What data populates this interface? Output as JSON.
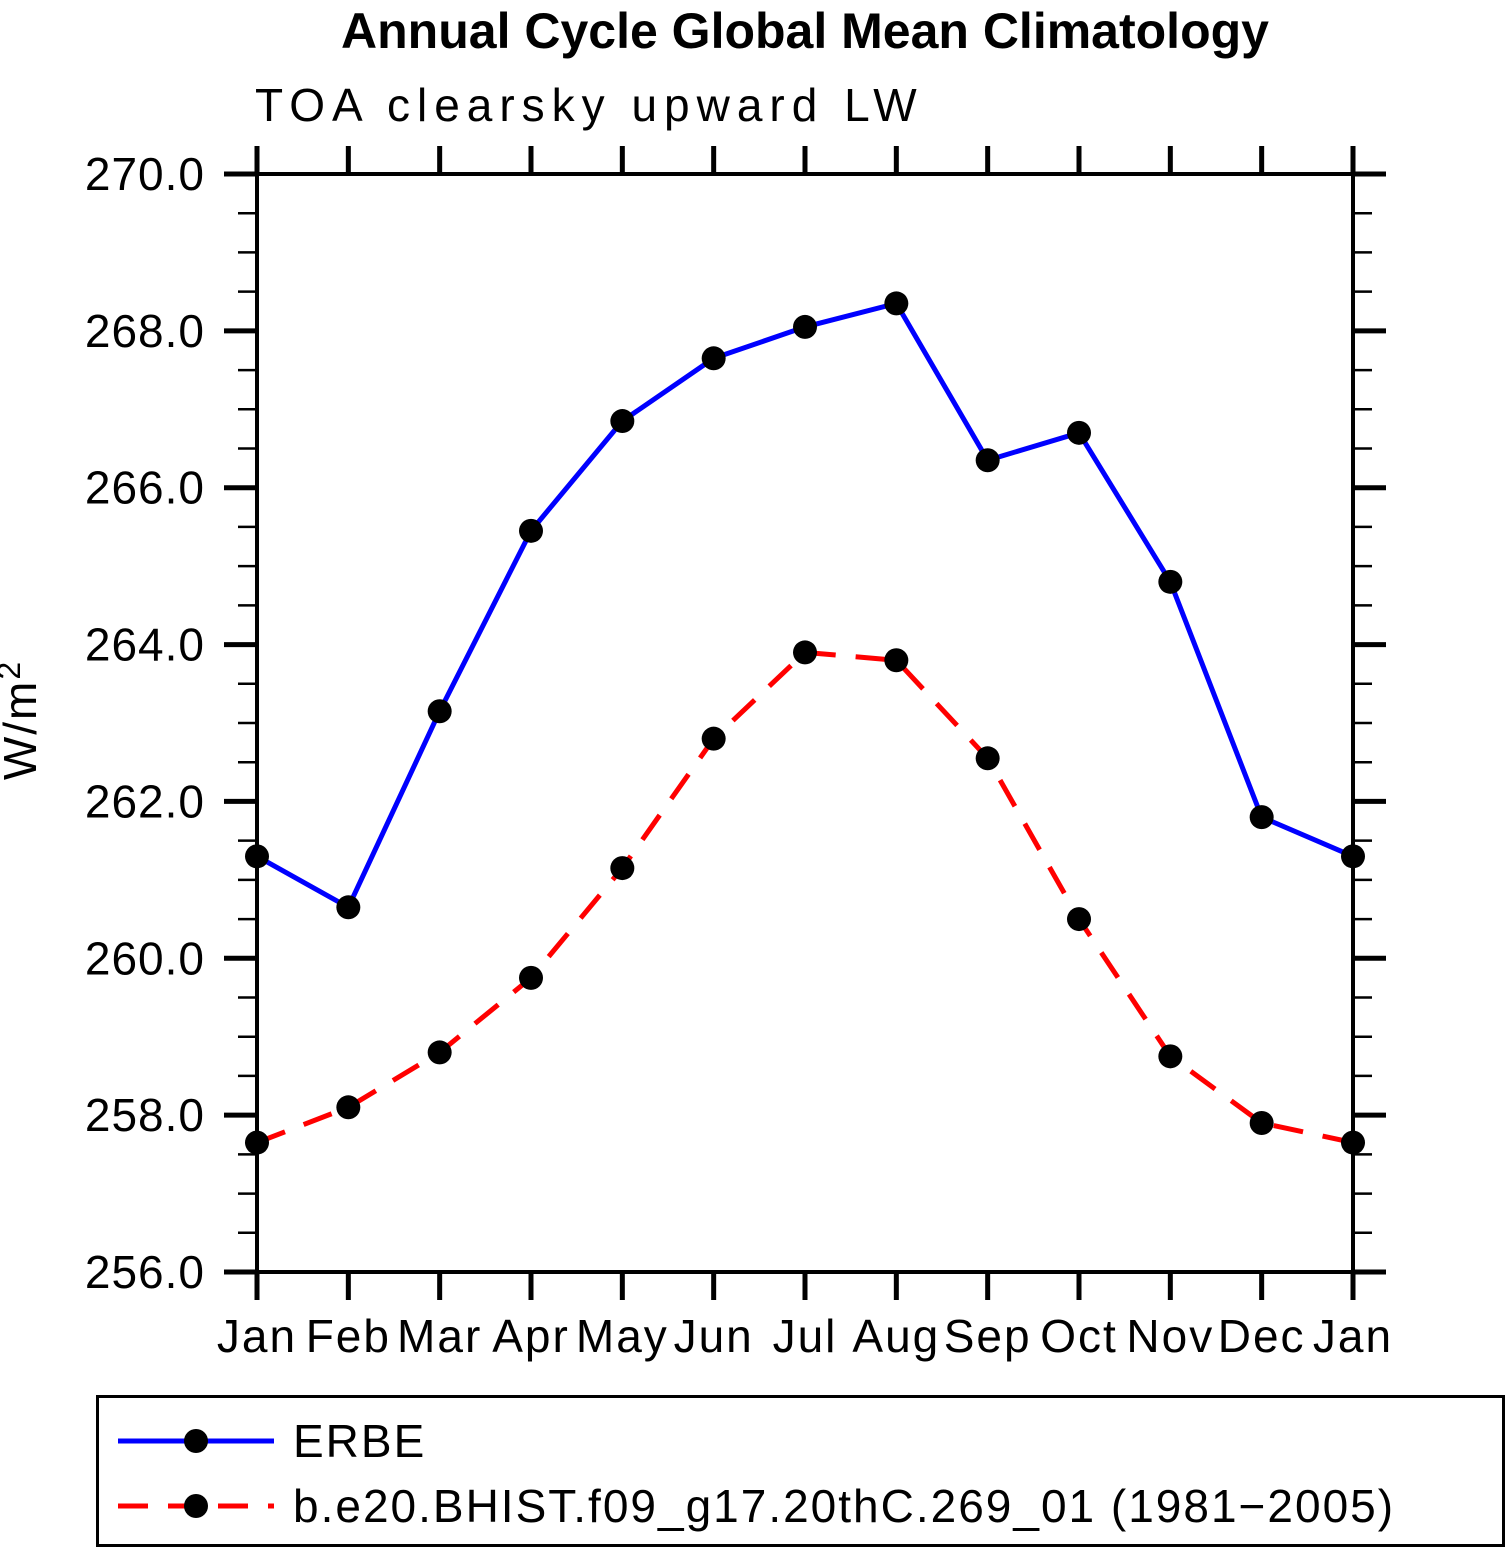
{
  "page": {
    "background_color": "#ffffff",
    "text_color": "#000000"
  },
  "chart_data": {
    "type": "line",
    "title": "Annual Cycle Global Mean Climatology",
    "subtitle": "TOA clearsky upward LW",
    "ylabel": "W/m",
    "ylabel_superscript": "2",
    "categories": [
      "Jan",
      "Feb",
      "Mar",
      "Apr",
      "May",
      "Jun",
      "Jul",
      "Aug",
      "Sep",
      "Oct",
      "Nov",
      "Dec",
      "Jan"
    ],
    "ylim": [
      256.0,
      270.0
    ],
    "ytick_interval": 2.0,
    "yminor_interval": 0.5,
    "y_tick_labels": [
      "256.0",
      "258.0",
      "260.0",
      "262.0",
      "264.0",
      "266.0",
      "268.0",
      "270.0"
    ],
    "grid": false,
    "legend_position": "bottom-left-box",
    "marker": {
      "shape": "circle",
      "color": "#000000"
    },
    "axis_color": "#000000",
    "series": [
      {
        "name": "ERBE",
        "color": "#0000ff",
        "line_style": "solid",
        "values": [
          261.3,
          260.65,
          263.15,
          265.45,
          266.85,
          267.65,
          268.05,
          268.35,
          266.35,
          266.7,
          264.8,
          261.8,
          261.3
        ]
      },
      {
        "name": "b.e20.BHIST.f09_g17.20thC.269_01 (1981−2005)",
        "color": "#ff0000",
        "line_style": "dashed",
        "values": [
          257.65,
          258.1,
          258.8,
          259.75,
          261.15,
          262.8,
          263.9,
          263.8,
          262.55,
          260.5,
          258.75,
          257.9,
          257.65
        ]
      }
    ]
  }
}
